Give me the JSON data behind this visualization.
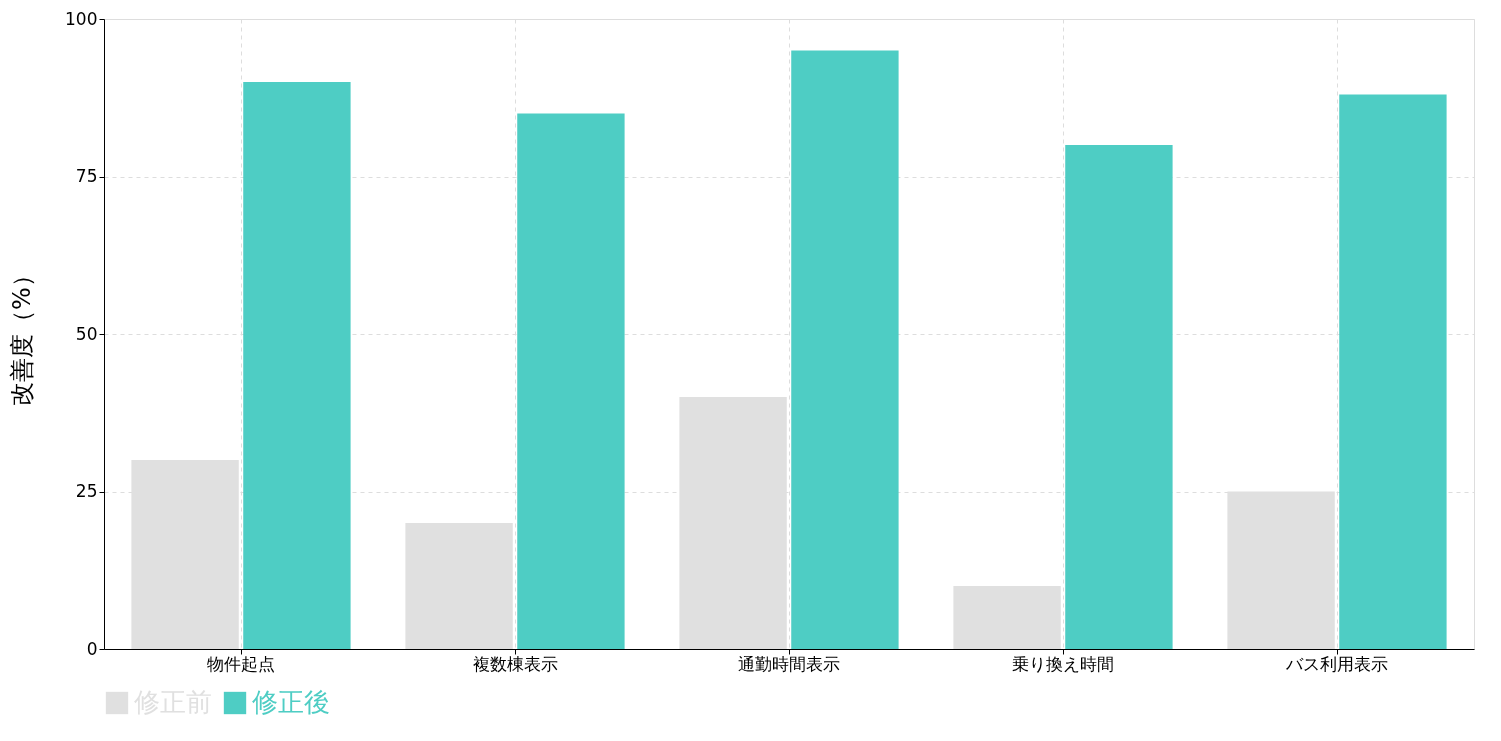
{
  "chart_data": {
    "type": "bar",
    "ylabel": "改善度（%）",
    "categories": [
      "物件起点",
      "複数棟表示",
      "通勤時間表示",
      "乗り換え時間",
      "バス利用表示"
    ],
    "series": [
      {
        "name": "修正前",
        "color": "#e0e0e0",
        "values": [
          30,
          20,
          40,
          10,
          25
        ]
      },
      {
        "name": "修正後",
        "color": "#4ecdc4",
        "values": [
          90,
          85,
          95,
          80,
          88
        ]
      }
    ],
    "ylim": [
      0,
      100
    ],
    "yticks": [
      0,
      25,
      50,
      75,
      100
    ],
    "grid": true,
    "legend": "bottom"
  }
}
